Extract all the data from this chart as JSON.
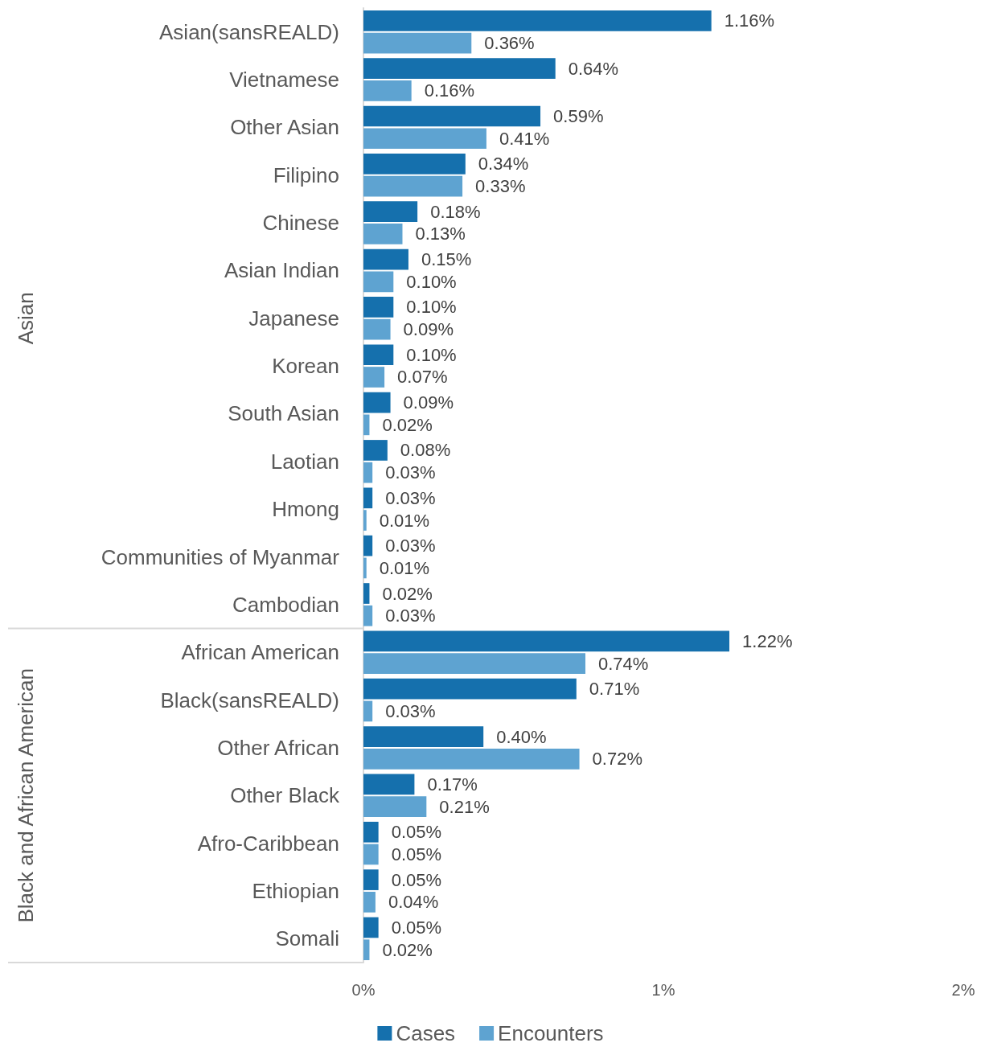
{
  "chart_data": {
    "type": "bar",
    "orientation": "horizontal",
    "categories": [
      "Asian(sansREALD)",
      "Vietnamese",
      "Other Asian",
      "Filipino",
      "Chinese",
      "Asian Indian",
      "Japanese",
      "Korean",
      "South Asian",
      "Laotian",
      "Hmong",
      "Communities of Myanmar",
      "Cambodian",
      "African American",
      "Black(sansREALD)",
      "Other African",
      "Other Black",
      "Afro-Caribbean",
      "Ethiopian",
      "Somali"
    ],
    "series": [
      {
        "name": "Cases",
        "color": "#1570ad",
        "values": [
          1.16,
          0.64,
          0.59,
          0.34,
          0.18,
          0.15,
          0.1,
          0.1,
          0.09,
          0.08,
          0.03,
          0.03,
          0.02,
          1.22,
          0.71,
          0.4,
          0.17,
          0.05,
          0.05,
          0.05
        ],
        "value_labels": [
          "1.16%",
          "0.64%",
          "0.59%",
          "0.34%",
          "0.18%",
          "0.15%",
          "0.10%",
          "0.10%",
          "0.09%",
          "0.08%",
          "0.03%",
          "0.03%",
          "0.02%",
          "1.22%",
          "0.71%",
          "0.40%",
          "0.17%",
          "0.05%",
          "0.05%",
          "0.05%"
        ]
      },
      {
        "name": "Encounters",
        "color": "#5ea3d1",
        "values": [
          0.36,
          0.16,
          0.41,
          0.33,
          0.13,
          0.1,
          0.09,
          0.07,
          0.02,
          0.03,
          0.01,
          0.01,
          0.03,
          0.74,
          0.03,
          0.72,
          0.21,
          0.05,
          0.04,
          0.02
        ],
        "value_labels": [
          "0.36%",
          "0.16%",
          "0.41%",
          "0.33%",
          "0.13%",
          "0.10%",
          "0.09%",
          "0.07%",
          "0.02%",
          "0.03%",
          "0.01%",
          "0.01%",
          "0.03%",
          "0.74%",
          "0.03%",
          "0.72%",
          "0.21%",
          "0.05%",
          "0.04%",
          "0.02%"
        ]
      }
    ],
    "xlim": [
      0,
      2
    ],
    "xticks": [
      {
        "value": 0,
        "label": "0%"
      },
      {
        "value": 1,
        "label": "1%"
      },
      {
        "value": 2,
        "label": "2%"
      }
    ],
    "grid": false,
    "legend": "bottom",
    "annotations": [
      "Asian",
      "Black and African American"
    ]
  }
}
